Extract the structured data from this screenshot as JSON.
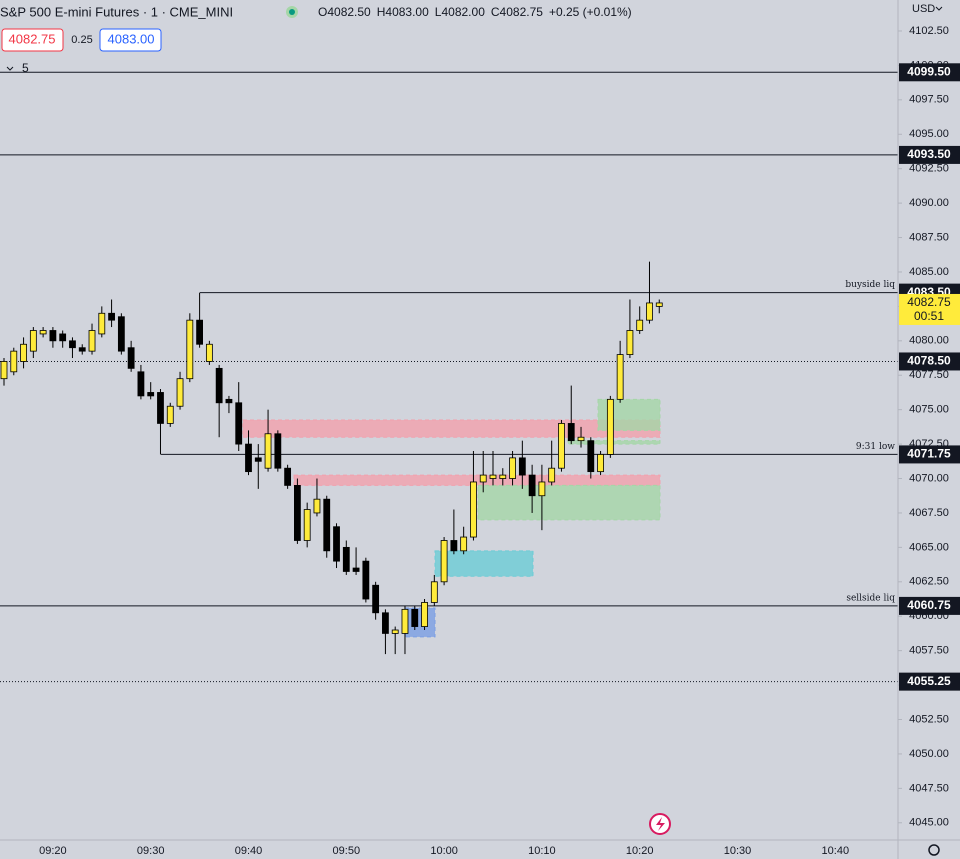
{
  "toolbar": {
    "title": "S&P 500 E-mini Futures · 1 · CME_MINI",
    "ohlc": [
      {
        "key": "O",
        "value": "4082.50"
      },
      {
        "key": "H",
        "value": "4083.00"
      },
      {
        "key": "L",
        "value": "4082.00"
      },
      {
        "key": "C",
        "value": "4082.75"
      }
    ],
    "change": "+0.25 (+0.01%)",
    "bid": "4082.75",
    "spread": "0.25",
    "ask": "4083.00",
    "indicator": "5",
    "currency": "USD"
  },
  "chart_data": {
    "type": "candlestick",
    "categories": [
      null,
      null,
      null,
      null,
      null,
      "09:20",
      null,
      null,
      null,
      null,
      null,
      null,
      null,
      null,
      null,
      "09:30",
      null,
      null,
      null,
      null,
      null,
      null,
      null,
      null,
      null,
      "09:40",
      null,
      null,
      null,
      null,
      null,
      null,
      null,
      null,
      null,
      "09:50",
      null,
      null,
      null,
      null,
      null,
      null,
      null,
      null,
      null,
      "10:00",
      null,
      null,
      null,
      null,
      null,
      null,
      null,
      null,
      null,
      "10:10",
      null,
      null,
      null,
      null,
      null,
      null,
      null,
      null,
      null,
      "10:20",
      null,
      null,
      null,
      null,
      null,
      null,
      null,
      null,
      null,
      "10:30",
      null,
      null,
      null,
      null,
      null,
      null,
      null,
      null,
      null,
      "10:40",
      null,
      null,
      null,
      null
    ],
    "open": [
      4077.25,
      4077.75,
      4078.5,
      4079.25,
      4080.5,
      4080.75,
      4080.5,
      4080,
      4079.5,
      4079.25,
      4080.5,
      4082,
      4081.75,
      4079.5,
      4077.75,
      4076.25,
      4076.25,
      4074,
      4075.25,
      4077.25,
      4081.5,
      4078.5,
      4078,
      4075.75,
      4075.5,
      4072.5,
      4071.5,
      4070.75,
      4073.25,
      4070.75,
      4069.5,
      4065.5,
      4067.5,
      4068.5,
      4066.5,
      4065,
      4063.5,
      4064,
      4062.25,
      4060.25,
      4058.75,
      4058.75,
      4060.5,
      4059.25,
      4061,
      4062.5,
      4065.5,
      4064.75,
      4065.75,
      4069.75,
      4070,
      4070,
      4070,
      4071.5,
      4070.25,
      4068.75,
      4069.75,
      4070.75,
      4074,
      4072.75,
      4072.75,
      4070.5,
      4071.75,
      4075.75,
      4079,
      4080.75,
      4081.5,
      4082.5,
      null,
      null,
      null,
      null,
      null,
      null,
      null,
      null,
      null,
      null,
      null,
      null,
      null,
      null,
      null,
      null,
      null,
      null,
      null,
      null,
      null,
      null
    ],
    "high": [
      4078.75,
      4079.5,
      4080.25,
      4081,
      4081,
      4081,
      4080.75,
      4080.25,
      4079.75,
      4081.25,
      4082.5,
      4083,
      4082,
      4080,
      4078.25,
      4077,
      4076.5,
      4075.5,
      4077.75,
      4082,
      4083.5,
      4080,
      4078.25,
      4076,
      4077,
      4073.5,
      4072.5,
      4075,
      4073.5,
      4071,
      4070,
      4068.25,
      4070,
      4068.75,
      4066.75,
      4065.5,
      4065,
      4064.25,
      4062.5,
      4060.5,
      4059.25,
      4060.75,
      4060.75,
      4061.25,
      4063,
      4065.75,
      4067.75,
      4066.5,
      4072,
      4072,
      4072,
      4070.75,
      4072,
      4072.75,
      4071,
      4071,
      4072.75,
      4074.25,
      4076.75,
      4073.75,
      4073,
      4072,
      4076,
      4080,
      4083,
      4082.5,
      4085.75,
      4083,
      null,
      null,
      null,
      null,
      null,
      null,
      null,
      null,
      null,
      null,
      null,
      null,
      null,
      null,
      null,
      null,
      null,
      null,
      null,
      null,
      null,
      null
    ],
    "low": [
      4076.75,
      4077.5,
      4078,
      4078.75,
      4080.25,
      4079.5,
      4079.5,
      4078.75,
      4079,
      4079,
      4080.25,
      4081,
      4079,
      4077.75,
      4075.75,
      4075.75,
      4071.75,
      4073.75,
      4075,
      4077,
      4079.5,
      4078.25,
      4073,
      4074.75,
      4072,
      4070.25,
      4069.25,
      4070.5,
      4070.5,
      4069.25,
      4065.25,
      4065,
      4067.25,
      4064.25,
      4063.5,
      4063,
      4063,
      4061,
      4059.75,
      4057.25,
      4057.25,
      4057.25,
      4059,
      4059,
      4060.75,
      4062.25,
      4064.5,
      4064.5,
      4065.5,
      4069,
      4069.5,
      4069.5,
      4069.5,
      4069.25,
      4067.5,
      4066.25,
      4069.5,
      4070.5,
      4072.5,
      4072.25,
      4070,
      4070.25,
      4071.5,
      4075.5,
      4078.75,
      4080.5,
      4081.25,
      4082,
      null,
      null,
      null,
      null,
      null,
      null,
      null,
      null,
      null,
      null,
      null,
      null,
      null,
      null,
      null,
      null,
      null,
      null,
      null,
      null,
      null,
      null
    ],
    "close": [
      4078.5,
      4079.25,
      4079.75,
      4080.75,
      4080.75,
      4080,
      4080,
      4079.5,
      4079.25,
      4080.75,
      4082,
      4081.5,
      4079.25,
      4078,
      4076,
      4076,
      4074,
      4075.25,
      4077.25,
      4081.5,
      4079.75,
      4079.75,
      4075.5,
      4075.5,
      4072.5,
      4070.5,
      4071.25,
      4073.25,
      4070.75,
      4069.5,
      4065.5,
      4067.75,
      4068.5,
      4064.75,
      4064,
      4063.25,
      4063.25,
      4061.25,
      4060.25,
      4058.75,
      4059,
      4060.5,
      4059.25,
      4061,
      4062.5,
      4065.5,
      4064.75,
      4065.75,
      4069.75,
      4070.25,
      4070.25,
      4070.25,
      4071.5,
      4070.25,
      4068.75,
      4069.75,
      4070.75,
      4074,
      4072.75,
      4073,
      4070.5,
      4071.75,
      4075.75,
      4079,
      4080.75,
      4081.5,
      4082.75,
      4082.75,
      null,
      null,
      null,
      null,
      null,
      null,
      null,
      null,
      null,
      null,
      null,
      null,
      null,
      null,
      null,
      null,
      null,
      null,
      null,
      null,
      null,
      null
    ],
    "up_color": "#ffeb3b",
    "down_color": "#000000",
    "ylim": [
      4043.75,
      4104.75
    ],
    "yticks": [
      {
        "value": 4045,
        "label": "4045.00"
      },
      {
        "value": 4047.5,
        "label": "4047.50"
      },
      {
        "value": 4050,
        "label": "4050.00"
      },
      {
        "value": 4052.5,
        "label": "4052.50"
      },
      {
        "value": 4055,
        "label": "4055.00"
      },
      {
        "value": 4057.5,
        "label": "4057.50"
      },
      {
        "value": 4060,
        "label": "4060.00"
      },
      {
        "value": 4062.5,
        "label": "4062.50"
      },
      {
        "value": 4065,
        "label": "4065.00"
      },
      {
        "value": 4067.5,
        "label": "4067.50"
      },
      {
        "value": 4070,
        "label": "4070.00"
      },
      {
        "value": 4072.5,
        "label": "4072.50"
      },
      {
        "value": 4075,
        "label": "4075.00"
      },
      {
        "value": 4077.5,
        "label": "4077.50"
      },
      {
        "value": 4080,
        "label": "4080.00"
      },
      {
        "value": 4082.5,
        "label": "4082.50"
      },
      {
        "value": 4085,
        "label": "4085.00"
      },
      {
        "value": 4087.5,
        "label": "4087.50"
      },
      {
        "value": 4090,
        "label": "4090.00"
      },
      {
        "value": 4092.5,
        "label": "4092.50"
      },
      {
        "value": 4095,
        "label": "4095.00"
      },
      {
        "value": 4097.5,
        "label": "4097.50"
      },
      {
        "value": 4100,
        "label": "4100.00"
      },
      {
        "value": 4102.5,
        "label": "4102.50"
      }
    ],
    "grid": false,
    "levels": [
      {
        "value": 4099.5,
        "label": "4099.50",
        "style": "solid"
      },
      {
        "value": 4093.5,
        "label": "4093.50",
        "style": "solid"
      },
      {
        "value": 4083.5,
        "label": "4083.50",
        "style": "solid",
        "note": "buyside liq"
      },
      {
        "value": 4078.5,
        "label": "4078.50",
        "style": "dotted"
      },
      {
        "value": 4071.75,
        "label": "4071.75",
        "style": "solid",
        "note": "9:31 low"
      },
      {
        "value": 4060.75,
        "label": "4060.75",
        "style": "solid",
        "note": "sellside liq"
      },
      {
        "value": 4055.25,
        "label": "4055.25",
        "style": "dotted"
      }
    ],
    "zones": [
      {
        "range": [
          4073,
          4074.25
        ],
        "color": "#f2a0ad"
      },
      {
        "range": [
          4069.5,
          4070.25
        ],
        "color": "#f2a0ad"
      },
      {
        "range": [
          4067,
          4069.5
        ],
        "color": "#a5d6a7"
      },
      {
        "range": [
          4073.5,
          4075.75
        ],
        "color": "#a5d6a7"
      },
      {
        "range": [
          4072.5,
          4072.75
        ],
        "color": "#a5d6a7"
      },
      {
        "range": [
          4062.9,
          4064.75
        ],
        "color": "#6cccd6"
      },
      {
        "range": [
          4058.5,
          4060.6
        ],
        "color": "#7b9ee4"
      }
    ],
    "last_price": {
      "value": 4082.75,
      "label": "4082.75"
    },
    "countdown": "00:51"
  }
}
